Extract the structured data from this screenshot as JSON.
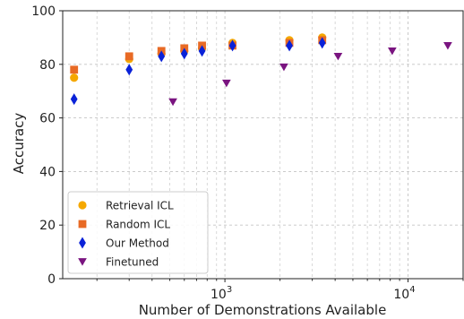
{
  "chart_data": {
    "type": "scatter",
    "xlabel": "Number of Demonstrations Available",
    "ylabel": "Accuracy",
    "x_scale": "log",
    "xlim": [
      130,
      20000
    ],
    "ylim": [
      0,
      100
    ],
    "y_ticks": [
      0,
      20,
      40,
      60,
      80,
      100
    ],
    "x_major_ticks": [
      1000,
      10000
    ],
    "x_major_tick_labels": [
      {
        "base": "10",
        "exp": "3"
      },
      {
        "base": "10",
        "exp": "4"
      }
    ],
    "grid": true,
    "legend_position": "bottom-left",
    "series": [
      {
        "name": "Retrieval ICL",
        "marker": "circle",
        "color": "#f5a800",
        "points": [
          [
            150,
            75
          ],
          [
            300,
            82
          ],
          [
            450,
            84
          ],
          [
            600,
            85
          ],
          [
            750,
            86
          ],
          [
            1100,
            88
          ],
          [
            2250,
            89
          ],
          [
            3400,
            90
          ]
        ]
      },
      {
        "name": "Random ICL",
        "marker": "square",
        "color": "#e86a25",
        "points": [
          [
            150,
            78
          ],
          [
            300,
            83
          ],
          [
            450,
            85
          ],
          [
            600,
            86
          ],
          [
            750,
            87
          ],
          [
            1100,
            87
          ],
          [
            2250,
            88
          ],
          [
            3400,
            89
          ]
        ]
      },
      {
        "name": "Our Method",
        "marker": "diamond",
        "color": "#0a22d8",
        "points": [
          [
            150,
            67
          ],
          [
            300,
            78
          ],
          [
            450,
            83
          ],
          [
            600,
            84
          ],
          [
            750,
            85
          ],
          [
            1100,
            87
          ],
          [
            2250,
            87
          ],
          [
            3400,
            88
          ]
        ]
      },
      {
        "name": "Finetuned",
        "marker": "triangle-down",
        "color": "#7a1480",
        "points": [
          [
            520,
            66
          ],
          [
            1020,
            73
          ],
          [
            2100,
            79
          ],
          [
            4150,
            83
          ],
          [
            8200,
            85
          ],
          [
            16500,
            87
          ]
        ]
      }
    ]
  }
}
